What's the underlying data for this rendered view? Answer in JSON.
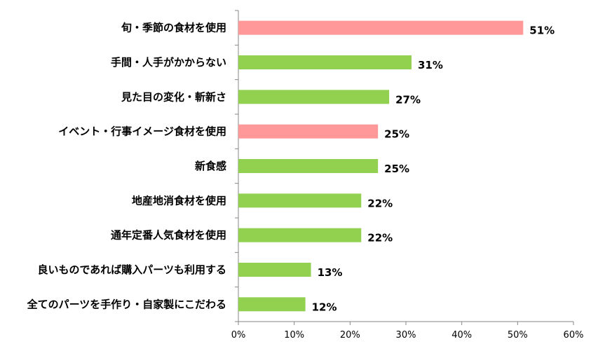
{
  "chart_data": {
    "type": "bar",
    "orientation": "horizontal",
    "categories": [
      "旬・季節の食材を使用",
      "手間・人手がかからない",
      "見た目の変化・斬新さ",
      "イベント・行事イメージ食材を使用",
      "新食感",
      "地産地消食材を使用",
      "通年定番人気食材を使用",
      "良いものであれば購入パーツも利用する",
      "全てのパーツを手作り・自家製にこだわる"
    ],
    "values": [
      51,
      31,
      27,
      25,
      25,
      22,
      22,
      13,
      12
    ],
    "value_labels": [
      "51%",
      "31%",
      "27%",
      "25%",
      "25%",
      "22%",
      "22%",
      "13%",
      "12%"
    ],
    "highlighted": [
      true,
      false,
      false,
      true,
      false,
      false,
      false,
      false,
      false
    ],
    "colors": {
      "highlight": "#ff9999",
      "normal": "#92d050",
      "axis": "#868686"
    },
    "xlim": [
      0,
      60
    ],
    "xticks": [
      0,
      10,
      20,
      30,
      40,
      50,
      60
    ],
    "xtick_labels": [
      "0%",
      "10%",
      "20%",
      "30%",
      "40%",
      "50%",
      "60%"
    ],
    "title": "",
    "xlabel": "",
    "ylabel": "",
    "grid": false,
    "legend": "none"
  }
}
